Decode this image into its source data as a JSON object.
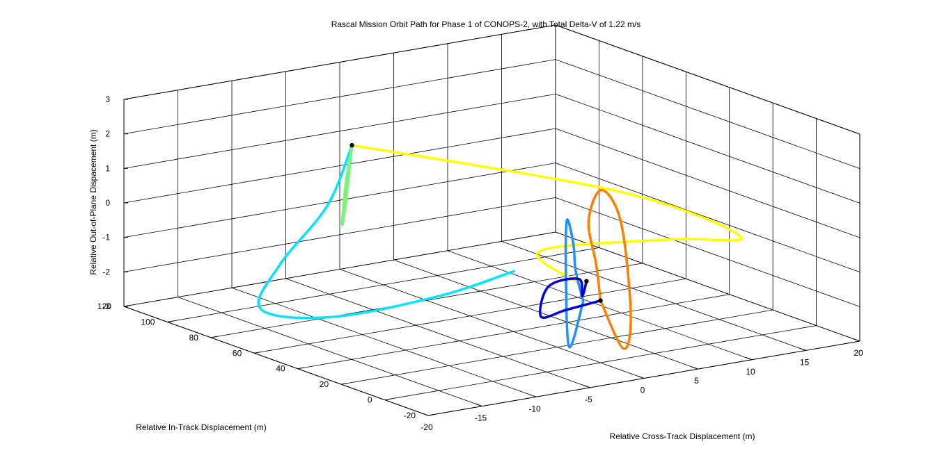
{
  "chart_data": {
    "type": "line",
    "projection": "3d",
    "title": "Rascal Mission Orbit Path for Phase 1 of CONOPS-2, with Total Delta-V of 1.22 m/s",
    "xlabel": "Relative Cross-Track Displacement (m)",
    "ylabel": "Relative In-Track Displacement (m)",
    "zlabel": "Relative Out-of-Plane Dispacement (m)",
    "xlim": [
      -20,
      20
    ],
    "ylim": [
      -20,
      120
    ],
    "zlim": [
      -3,
      3
    ],
    "xticks": [
      "-20",
      "-15",
      "-10",
      "-5",
      "0",
      "5",
      "10",
      "15",
      "20"
    ],
    "yticks": [
      "-20",
      "0",
      "20",
      "40",
      "60",
      "80",
      "100",
      "120"
    ],
    "zticks": [
      "-3",
      "-2",
      "-1",
      "0",
      "1",
      "2",
      "3"
    ],
    "grid": true,
    "legend": "none",
    "series": [
      {
        "color": "#00e5ff",
        "line_width": 3.5,
        "points": [
          [
            -6.0,
            10,
            -0.25
          ],
          [
            -10,
            25,
            -1.1
          ],
          [
            -15,
            50,
            -2.0
          ],
          [
            -17,
            72,
            -2.15
          ],
          [
            -12,
            88,
            -1.5
          ],
          [
            -6,
            96,
            -0.3
          ],
          [
            -3.5,
            97,
            1.3
          ]
        ]
      },
      {
        "color": "#7df27d",
        "line_width": 3.5,
        "points": [
          [
            -3.5,
            97,
            1.3
          ],
          [
            -4.2,
            96.5,
            0.2
          ],
          [
            -4.6,
            96,
            -0.9
          ],
          [
            -4.2,
            96.5,
            -0.4
          ],
          [
            -3.5,
            97,
            1.3
          ]
        ]
      },
      {
        "color": "#ffff00",
        "line_width": 3.5,
        "points": [
          [
            -3.5,
            97,
            1.3
          ],
          [
            10,
            40,
            0.5
          ],
          [
            16,
            15,
            -0.55
          ],
          [
            10,
            17,
            -0.35
          ],
          [
            -1.2,
            22,
            -0.2
          ],
          [
            -1.2,
            1,
            -0.75
          ]
        ]
      },
      {
        "color": "#ff7f00",
        "line_width": 3.5,
        "points": [
          [
            0,
            0,
            -1.2
          ],
          [
            1.5,
            -3,
            -2.6
          ],
          [
            3.0,
            1,
            -1.8
          ],
          [
            3.5,
            8,
            0.7
          ],
          [
            2.5,
            12,
            1.6
          ],
          [
            0.5,
            8,
            0.9
          ],
          [
            0,
            2,
            -0.2
          ],
          [
            0,
            0,
            -1.2
          ]
        ]
      },
      {
        "color": "#1e90ff",
        "line_width": 3.5,
        "points": [
          [
            -1.2,
            2,
            -1.2
          ],
          [
            -1.9,
            5,
            -2.55
          ],
          [
            -2.0,
            6,
            -0.4
          ],
          [
            -1.3,
            9,
            1.0
          ],
          [
            -0.9,
            8,
            0.3
          ],
          [
            -1.1,
            6,
            -0.4
          ],
          [
            -1.2,
            2,
            -1.2
          ]
        ]
      },
      {
        "color": "#0000dd",
        "line_width": 3.5,
        "points": [
          [
            0,
            0,
            -1.2
          ],
          [
            -2.0,
            6,
            -1.5
          ],
          [
            -3.5,
            10,
            -1.7
          ],
          [
            -2.0,
            14,
            -1.0
          ],
          [
            0,
            10,
            -0.8
          ],
          [
            -1.0,
            3.5,
            -1.1
          ],
          [
            -0.8,
            2.5,
            -0.65
          ]
        ]
      }
    ],
    "markers": [
      {
        "color": "#000000",
        "point": [
          -3.5,
          97,
          1.3
        ]
      },
      {
        "color": "#000000",
        "point": [
          -0.8,
          2.5,
          -0.65
        ]
      },
      {
        "color": "#000000",
        "point": [
          0,
          0,
          -1.2
        ]
      }
    ]
  }
}
